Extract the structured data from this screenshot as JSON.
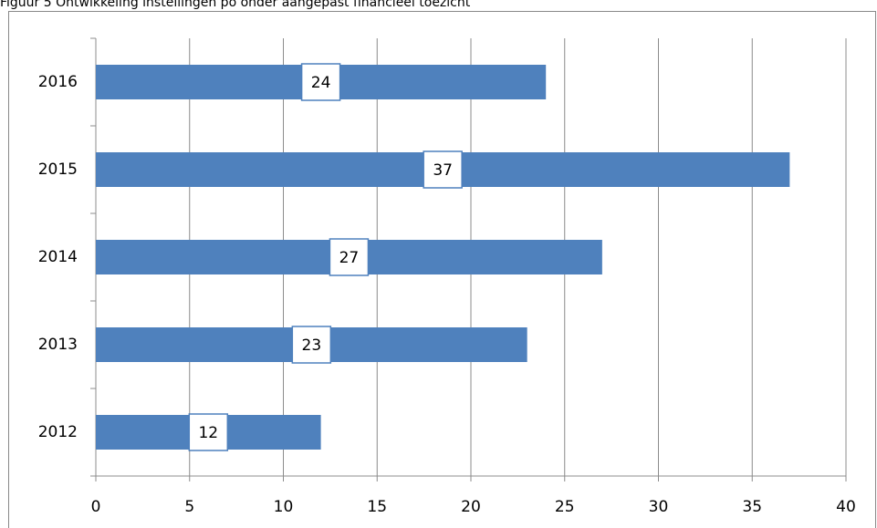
{
  "chart_data": {
    "type": "barh",
    "title": "Figuur 5 Ontwikkeling instellingen  po onder aangepast financieel toezicht",
    "categories": [
      "2016",
      "2015",
      "2014",
      "2013",
      "2012"
    ],
    "values": [
      24,
      37,
      27,
      23,
      12
    ],
    "color": "#4f81bd",
    "xlim": [
      0,
      40
    ],
    "xticks": [
      0,
      5,
      10,
      15,
      20,
      25,
      30,
      35,
      40
    ],
    "grid": true
  }
}
